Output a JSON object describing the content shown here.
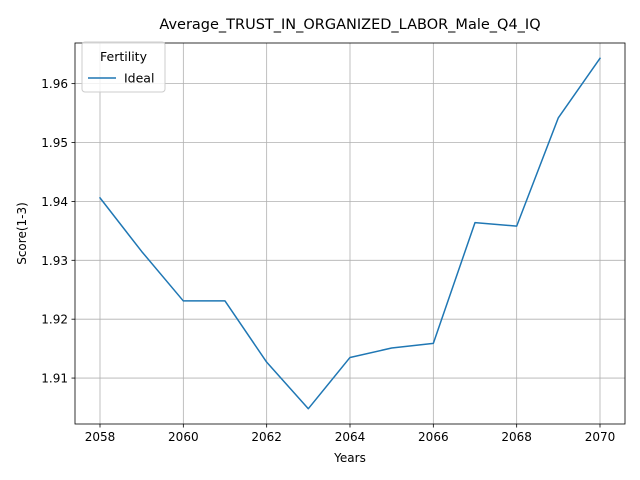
{
  "chart_data": {
    "type": "line",
    "title": "Average_TRUST_IN_ORGANIZED_LABOR_Male_Q4_IQ",
    "xlabel": "Years",
    "ylabel": "Score(1-3)",
    "xlim": [
      2057.4,
      2070.6
    ],
    "ylim": [
      1.9022,
      1.9669
    ],
    "xticks": [
      2058,
      2060,
      2062,
      2064,
      2066,
      2068,
      2070
    ],
    "yticks": [
      1.91,
      1.92,
      1.93,
      1.94,
      1.95,
      1.96
    ],
    "grid": true,
    "legend": {
      "title": "Fertility",
      "placement": "top-left"
    },
    "x": [
      2058,
      2059,
      2060,
      2061,
      2062,
      2063,
      2064,
      2065,
      2066,
      2067,
      2068,
      2069,
      2070
    ],
    "series": [
      {
        "name": "Ideal",
        "color": "#1f77b4",
        "values": [
          1.9406,
          1.9315,
          1.9231,
          1.9231,
          1.9127,
          1.9048,
          1.9135,
          1.9151,
          1.9159,
          1.9364,
          1.9358,
          1.9542,
          1.9643
        ]
      }
    ]
  }
}
